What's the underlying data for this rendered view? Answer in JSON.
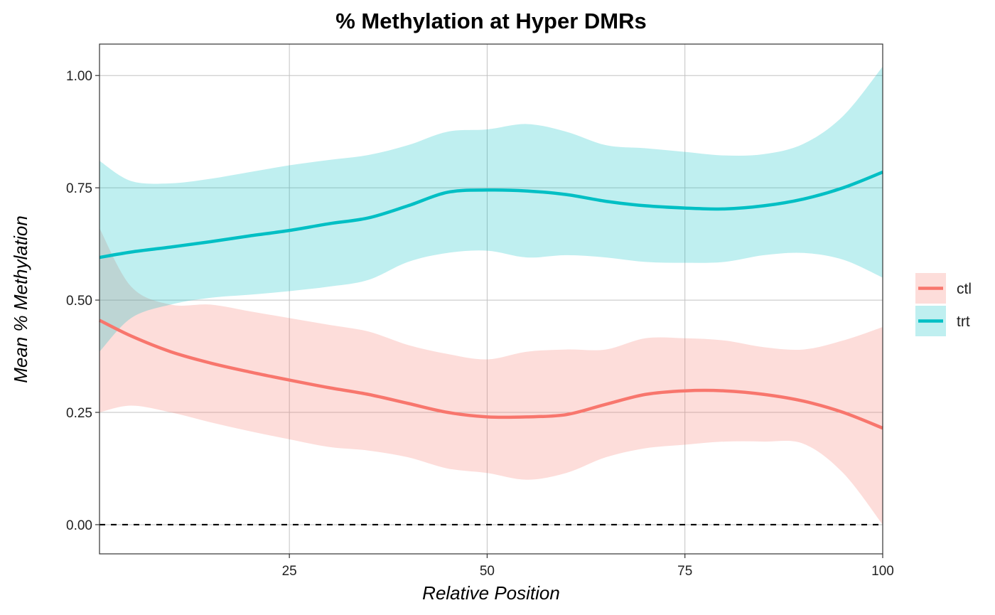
{
  "chart_data": {
    "type": "line",
    "title": "% Methylation at Hyper DMRs",
    "xlabel": "Relative Position",
    "ylabel": "Mean % Methylation",
    "xlim": [
      1,
      100
    ],
    "ylim": [
      -0.065,
      1.07
    ],
    "xticks": [
      25,
      50,
      75,
      100
    ],
    "xtick_labels": [
      "25",
      "50",
      "75",
      "100"
    ],
    "yticks": [
      0,
      0.25,
      0.5,
      0.75,
      1.0
    ],
    "ytick_labels": [
      "0.00",
      "0.25",
      "0.50",
      "0.75",
      "1.00"
    ],
    "grid": true,
    "legend_position": "right",
    "reference_line": {
      "y": 0,
      "style": "dashed",
      "color": "#000000"
    },
    "x": [
      1,
      5,
      10,
      15,
      20,
      25,
      30,
      35,
      40,
      45,
      50,
      55,
      60,
      65,
      70,
      75,
      80,
      85,
      90,
      95,
      100
    ],
    "series": [
      {
        "name": "ctl",
        "color": "#F8766D",
        "fill_color": "#F8766D",
        "values": [
          0.455,
          0.42,
          0.385,
          0.36,
          0.34,
          0.322,
          0.305,
          0.29,
          0.27,
          0.25,
          0.24,
          0.24,
          0.245,
          0.268,
          0.29,
          0.298,
          0.298,
          0.29,
          0.275,
          0.25,
          0.215
        ],
        "lower": [
          0.25,
          0.265,
          0.25,
          0.228,
          0.208,
          0.19,
          0.173,
          0.165,
          0.15,
          0.125,
          0.115,
          0.1,
          0.115,
          0.15,
          0.17,
          0.178,
          0.185,
          0.185,
          0.18,
          0.115,
          0.0
        ],
        "upper": [
          0.66,
          0.53,
          0.49,
          0.49,
          0.475,
          0.46,
          0.445,
          0.43,
          0.4,
          0.38,
          0.368,
          0.385,
          0.39,
          0.39,
          0.415,
          0.415,
          0.41,
          0.395,
          0.39,
          0.41,
          0.44
        ]
      },
      {
        "name": "trt",
        "color": "#00BFC4",
        "fill_color": "#00BFC4",
        "values": [
          0.595,
          0.607,
          0.618,
          0.63,
          0.643,
          0.655,
          0.67,
          0.683,
          0.71,
          0.74,
          0.745,
          0.743,
          0.735,
          0.72,
          0.71,
          0.705,
          0.703,
          0.71,
          0.725,
          0.75,
          0.785
        ],
        "lower": [
          0.385,
          0.46,
          0.49,
          0.505,
          0.512,
          0.52,
          0.53,
          0.545,
          0.585,
          0.605,
          0.61,
          0.595,
          0.6,
          0.595,
          0.585,
          0.583,
          0.585,
          0.6,
          0.605,
          0.59,
          0.55
        ],
        "upper": [
          0.81,
          0.765,
          0.76,
          0.77,
          0.785,
          0.8,
          0.812,
          0.823,
          0.845,
          0.875,
          0.88,
          0.892,
          0.875,
          0.845,
          0.838,
          0.83,
          0.822,
          0.825,
          0.848,
          0.91,
          1.02
        ]
      }
    ]
  }
}
